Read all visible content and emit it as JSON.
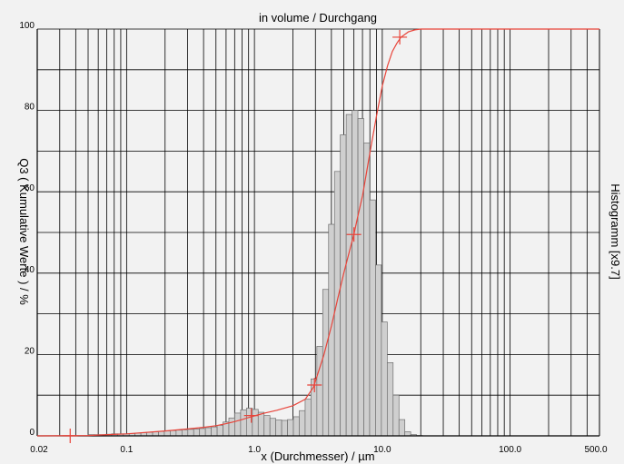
{
  "chart_data": {
    "type": "bar",
    "title": "in volume / Durchgang",
    "xlabel": "x (Durchmesser) / µm",
    "ylabel": "Q3 ( Kumulative Werte ) / %",
    "y2label": "Histogramm [x9.7]",
    "xscale": "log",
    "xlim": [
      0.02,
      500
    ],
    "ylim": [
      0,
      100
    ],
    "grid": true,
    "x_tick_labels": [
      {
        "value": 0.02,
        "label": "0.02"
      },
      {
        "value": 0.1,
        "label": "0.1"
      },
      {
        "value": 1,
        "label": "1.0"
      },
      {
        "value": 10,
        "label": "10.0"
      },
      {
        "value": 100,
        "label": "100.0"
      },
      {
        "value": 500,
        "label": "500.0"
      }
    ],
    "y_tick_labels": [
      {
        "value": 0,
        "label": "0"
      },
      {
        "value": 20,
        "label": "20"
      },
      {
        "value": 40,
        "label": "40"
      },
      {
        "value": 60,
        "label": "60"
      },
      {
        "value": 80,
        "label": "80"
      },
      {
        "value": 100,
        "label": "100"
      }
    ],
    "colors": {
      "histogram_fill": "#cfcfcf",
      "histogram_edge": "#6e6e6e",
      "cumulative": "#e8443a",
      "grid": "#000000",
      "background": "#f2f2f2"
    },
    "histogram": {
      "bin_edges": [
        0.05,
        0.0556,
        0.0618,
        0.0687,
        0.0763,
        0.0848,
        0.0943,
        0.1048,
        0.1164,
        0.1294,
        0.1438,
        0.1598,
        0.1776,
        0.1974,
        0.2194,
        0.2439,
        0.2711,
        0.3012,
        0.3348,
        0.3721,
        0.4136,
        0.4597,
        0.5109,
        0.5678,
        0.6311,
        0.7014,
        0.7796,
        0.8665,
        0.963,
        1.0703,
        1.1896,
        1.3221,
        1.4694,
        1.6331,
        1.8151,
        2.0173,
        2.2421,
        2.4919,
        2.7696,
        3.0781,
        3.4211,
        3.8023,
        4.2259,
        4.6968,
        5.2201,
        5.8017,
        6.4482,
        7.1666,
        7.9651,
        8.8526,
        9.8389,
        10.9352,
        12.1536,
        13.5077,
        15.0127,
        16.6854,
        18.5445,
        20.6107
      ],
      "values": [
        0.3,
        0.3,
        0.3,
        0.4,
        0.5,
        0.5,
        0.5,
        0.6,
        0.7,
        0.8,
        0.9,
        1,
        1.1,
        1.2,
        1.3,
        1.4,
        1.5,
        1.6,
        1.7,
        1.8,
        2,
        2.2,
        2.6,
        3.4,
        4.4,
        5.6,
        6.4,
        6.8,
        6.5,
        5.8,
        5,
        4.3,
        3.9,
        3.8,
        4,
        4.7,
        6.2,
        9,
        14,
        22,
        36,
        52,
        65,
        74,
        79,
        80,
        78,
        72,
        58,
        42,
        28,
        18,
        10,
        4,
        1,
        0.3,
        0.1
      ]
    },
    "cumulative": {
      "x": [
        0.02,
        0.05,
        0.1,
        0.2,
        0.3,
        0.4,
        0.5,
        0.6,
        0.7,
        0.8,
        0.9,
        1.0,
        1.2,
        1.5,
        2.0,
        2.5,
        2.9,
        3.5,
        4.0,
        4.5,
        5.0,
        5.5,
        6.0,
        6.5,
        7.0,
        8.0,
        9.0,
        10.0,
        11.0,
        12.0,
        13.0,
        14.0,
        16.0,
        18.0,
        20.0,
        500
      ],
      "y": [
        0,
        0.1,
        0.5,
        1.2,
        1.7,
        2.1,
        2.5,
        3.0,
        3.5,
        4.0,
        4.5,
        4.9,
        5.6,
        6.3,
        7.4,
        9.0,
        12.0,
        20.0,
        27.0,
        34.0,
        40.0,
        45.0,
        49.5,
        54.5,
        59.0,
        69.5,
        78.5,
        86.0,
        91.0,
        94.5,
        96.5,
        98.0,
        99.3,
        99.8,
        100,
        100
      ]
    },
    "cumulative_markers": [
      {
        "x": 0.0362,
        "y": 0
      },
      {
        "x": 0.945,
        "y": 5
      },
      {
        "x": 2.95,
        "y": 12.5
      },
      {
        "x": 6.0,
        "y": 49.5
      },
      {
        "x": 13.7,
        "y": 98
      }
    ]
  }
}
